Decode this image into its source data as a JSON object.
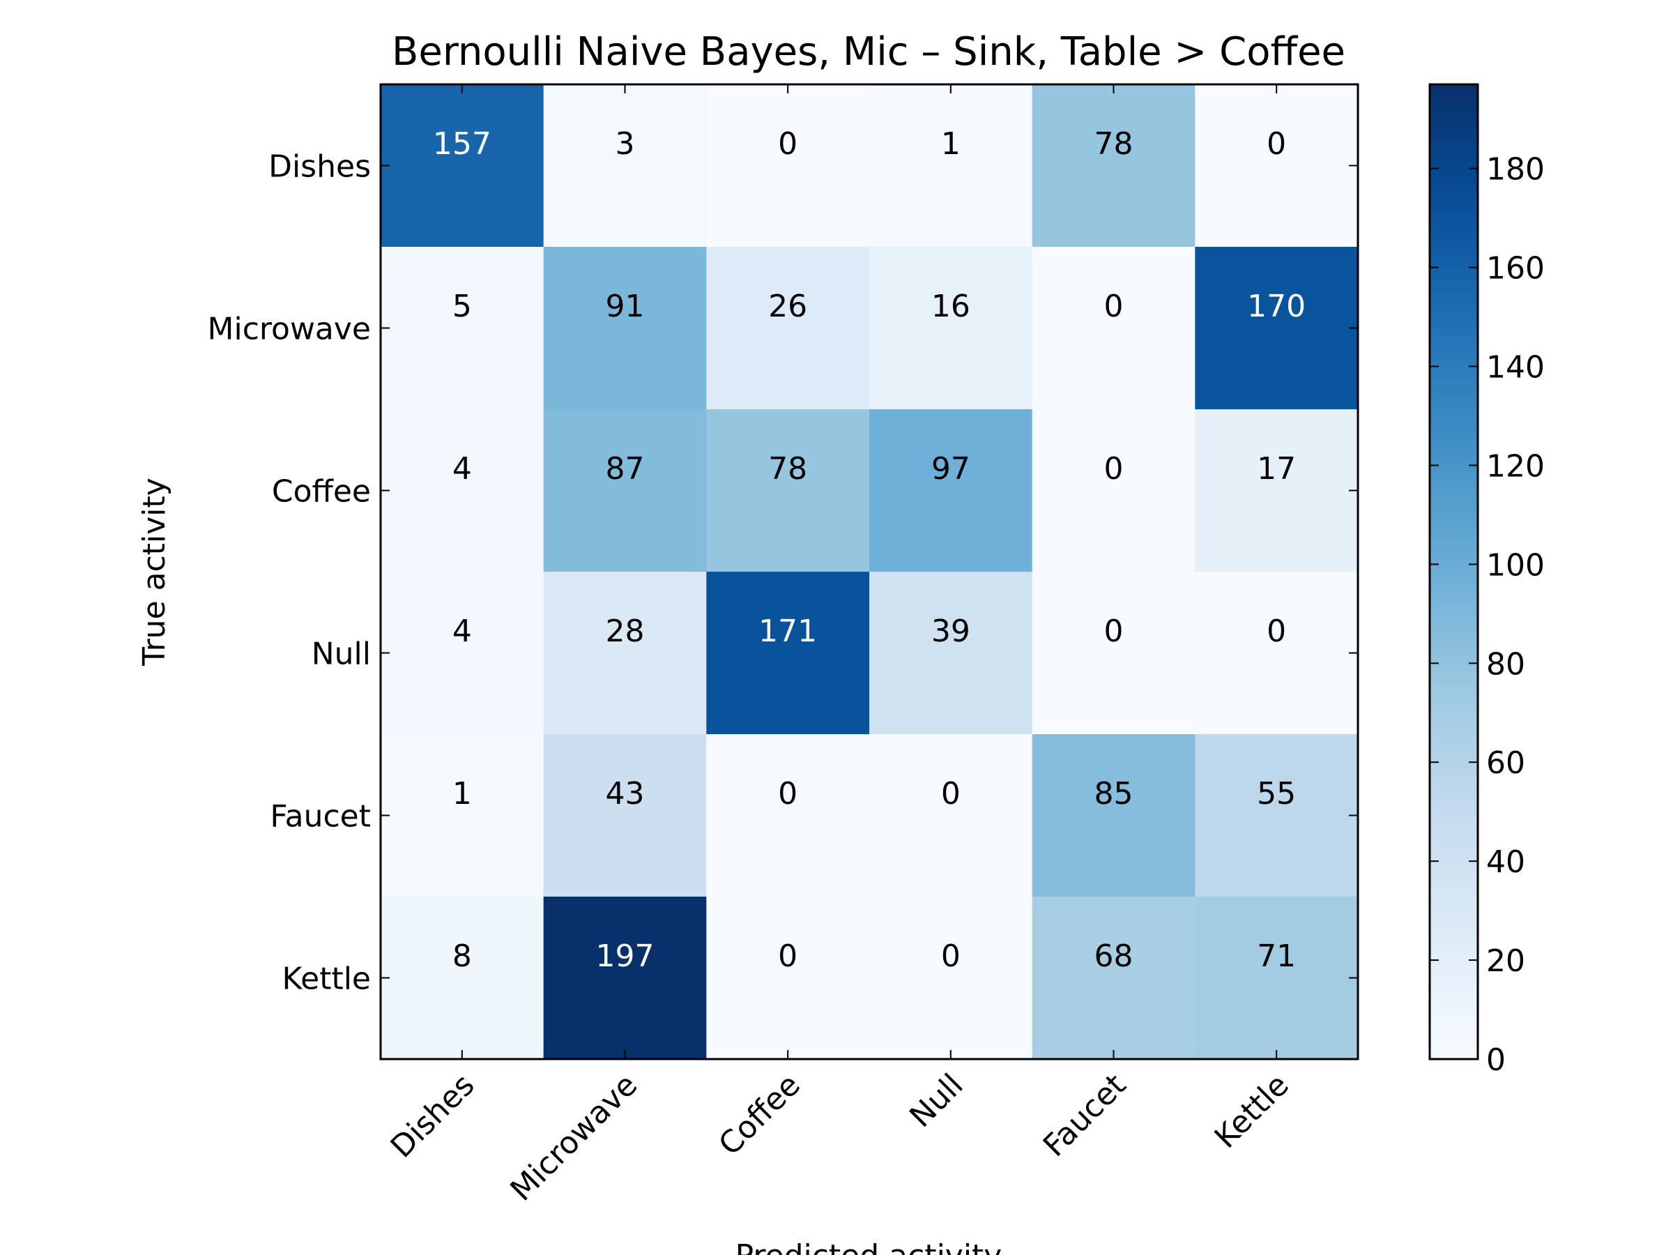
{
  "chart_data": {
    "type": "heatmap",
    "title": "Bernoulli Naive Bayes, Mic – Sink, Table > Coffee",
    "xlabel": "Predicted activity",
    "ylabel": "True activity",
    "row_labels": [
      "Dishes",
      "Microwave",
      "Coffee",
      "Null",
      "Faucet",
      "Kettle"
    ],
    "col_labels": [
      "Dishes",
      "Microwave",
      "Coffee",
      "Null",
      "Faucet",
      "Kettle"
    ],
    "values": [
      [
        157,
        3,
        0,
        1,
        78,
        0
      ],
      [
        5,
        91,
        26,
        16,
        0,
        170
      ],
      [
        4,
        87,
        78,
        97,
        0,
        17
      ],
      [
        4,
        28,
        171,
        39,
        0,
        0
      ],
      [
        1,
        43,
        0,
        0,
        85,
        55
      ],
      [
        8,
        197,
        0,
        0,
        68,
        71
      ]
    ],
    "colormap": "Blues",
    "color_range": [
      0,
      197
    ],
    "colorbar_ticks": [
      0,
      20,
      40,
      60,
      80,
      100,
      120,
      140,
      160,
      180
    ],
    "grid": false
  }
}
